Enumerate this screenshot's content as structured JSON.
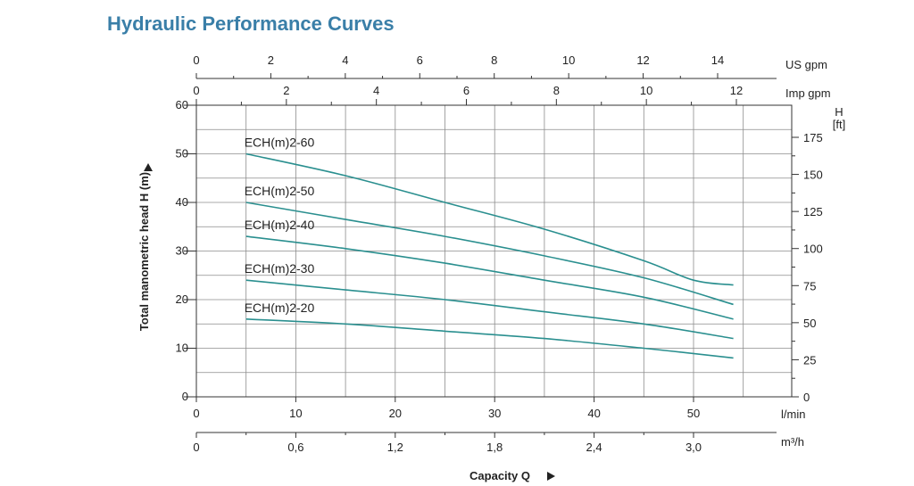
{
  "title": "Hydraulic Performance Curves",
  "colors": {
    "curve": "#2a8f8f",
    "grid": "#8c8c8c",
    "axis": "#333333",
    "title": "#3a7fa8"
  },
  "chart_data": {
    "type": "line",
    "title": "Hydraulic Performance Curves",
    "grid": true,
    "xlabel": "Capacity Q",
    "ylabel": "Total manometric head H (m)",
    "xlim": [
      0,
      59
    ],
    "ylim": [
      0,
      60
    ],
    "x_axes": {
      "us_gpm": {
        "unit": "US gpm",
        "ticks": [
          0,
          2,
          4,
          6,
          8,
          10,
          12,
          14
        ],
        "labels": [
          "0",
          "2",
          "4",
          "6",
          "8",
          "10",
          "12",
          "14"
        ]
      },
      "imp_gpm": {
        "unit": "Imp gpm",
        "ticks": [
          0,
          2,
          4,
          6,
          8,
          10,
          12
        ],
        "labels": [
          "0",
          "2",
          "4",
          "6",
          "8",
          "10",
          "12"
        ]
      },
      "l_min": {
        "unit": "l/min",
        "ticks": [
          0,
          10,
          20,
          30,
          40,
          50
        ],
        "labels": [
          "0",
          "10",
          "20",
          "30",
          "40",
          "50"
        ]
      },
      "m3_h": {
        "unit": "m³/h",
        "ticks": [
          0,
          0.6,
          1.2,
          1.8,
          2.4,
          3.0
        ],
        "labels": [
          "0",
          "0,6",
          "1,2",
          "1,8",
          "2,4",
          "3,0"
        ]
      }
    },
    "y_axes": {
      "m": {
        "ticks": [
          0,
          10,
          20,
          30,
          40,
          50,
          60
        ],
        "labels": [
          "0",
          "10",
          "20",
          "30",
          "40",
          "50",
          "60"
        ]
      },
      "ft": {
        "unit": "H",
        "unit2": "[ft]",
        "ticks": [
          0,
          25,
          50,
          75,
          100,
          125,
          150,
          175
        ],
        "labels": [
          "0",
          "25",
          "50",
          "75",
          "100",
          "125",
          "150",
          "175"
        ]
      }
    },
    "series": [
      {
        "name": "ECH(m)2-60",
        "x": [
          5,
          15,
          25,
          35,
          45,
          50,
          54
        ],
        "y": [
          50,
          45.5,
          40,
          34.5,
          28,
          24,
          23
        ]
      },
      {
        "name": "ECH(m)2-50",
        "x": [
          5,
          15,
          25,
          35,
          45,
          54
        ],
        "y": [
          40,
          36.5,
          33,
          29,
          24.5,
          19
        ]
      },
      {
        "name": "ECH(m)2-40",
        "x": [
          5,
          15,
          25,
          35,
          45,
          54
        ],
        "y": [
          33,
          30.5,
          27.5,
          24,
          20.5,
          16
        ]
      },
      {
        "name": "ECH(m)2-30",
        "x": [
          5,
          15,
          25,
          35,
          45,
          54
        ],
        "y": [
          24,
          22,
          20,
          17.5,
          15,
          12
        ]
      },
      {
        "name": "ECH(m)2-20",
        "x": [
          5,
          15,
          25,
          35,
          45,
          54
        ],
        "y": [
          16,
          15,
          13.5,
          12,
          10,
          8
        ]
      }
    ]
  }
}
